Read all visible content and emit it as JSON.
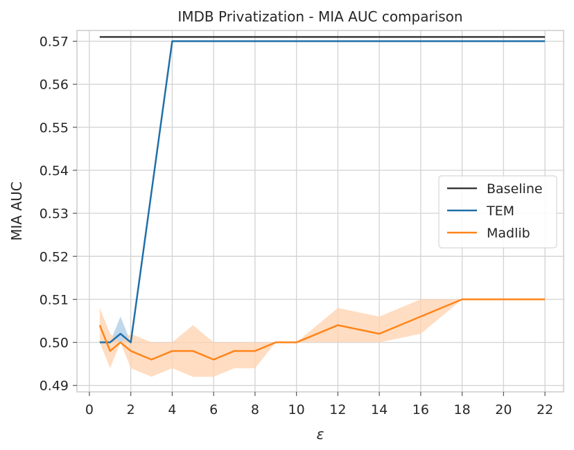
{
  "chart_data": {
    "type": "line",
    "title": "IMDB Privatization - MIA AUC comparison",
    "xlabel": "ε",
    "ylabel": "MIA AUC",
    "xlim": [
      -0.6,
      22.9
    ],
    "ylim": [
      0.4885,
      0.5725
    ],
    "xticks": [
      0,
      2,
      4,
      6,
      8,
      10,
      12,
      14,
      16,
      18,
      20,
      22
    ],
    "yticks": [
      0.49,
      0.5,
      0.51,
      0.52,
      0.53,
      0.54,
      0.55,
      0.56,
      0.57
    ],
    "ytick_labels": [
      "0.49",
      "0.50",
      "0.51",
      "0.52",
      "0.53",
      "0.54",
      "0.55",
      "0.56",
      "0.57"
    ],
    "grid": true,
    "legend_position": "center-right",
    "series": [
      {
        "name": "Baseline",
        "color": "#3a3a3a",
        "x": [
          0.5,
          22
        ],
        "y": [
          0.571,
          0.571
        ]
      },
      {
        "name": "TEM",
        "color": "#1f6fa8",
        "band_color": "#a9cbe6",
        "x": [
          0.5,
          1,
          1.5,
          2,
          4,
          22
        ],
        "y": [
          0.5,
          0.5,
          0.502,
          0.5,
          0.57,
          0.57
        ],
        "lower": [
          0.5,
          0.5,
          0.5,
          0.5,
          0.57,
          0.57
        ],
        "upper": [
          0.5,
          0.5,
          0.506,
          0.5,
          0.57,
          0.57
        ]
      },
      {
        "name": "Madlib",
        "color": "#ff8418",
        "band_color": "#ffd2ad",
        "x": [
          0.5,
          1,
          1.5,
          2,
          3,
          4,
          5,
          6,
          7,
          8,
          9,
          10,
          12,
          14,
          16,
          18,
          20,
          22
        ],
        "y": [
          0.504,
          0.498,
          0.5,
          0.498,
          0.496,
          0.498,
          0.498,
          0.496,
          0.498,
          0.498,
          0.5,
          0.5,
          0.504,
          0.502,
          0.506,
          0.51,
          0.51,
          0.51
        ],
        "lower": [
          0.5,
          0.494,
          0.5,
          0.494,
          0.492,
          0.494,
          0.492,
          0.492,
          0.494,
          0.494,
          0.5,
          0.5,
          0.5,
          0.5,
          0.502,
          0.51,
          0.51,
          0.51
        ],
        "upper": [
          0.508,
          0.502,
          0.5,
          0.502,
          0.5,
          0.5,
          0.504,
          0.5,
          0.5,
          0.5,
          0.5,
          0.5,
          0.508,
          0.506,
          0.51,
          0.51,
          0.51,
          0.51
        ]
      }
    ]
  }
}
